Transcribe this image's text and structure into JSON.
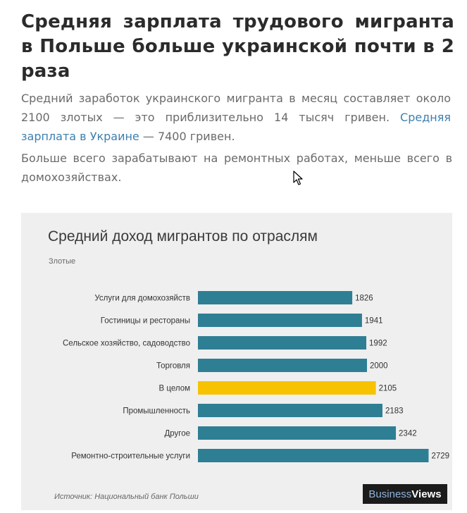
{
  "article": {
    "headline": "Средняя зарплата трудового мигранта в Польше больше украинской почти в 2 раза",
    "lead_text": "Средний заработок украинского мигранта в месяц составляет около 2100 злотых — это приблизительно 14 тысяч гривен. ",
    "lead_link": "Средняя зарплата в Украине",
    "lead_tail": " — 7400 гривен.",
    "paragraph2": "Больше всего зарабатывают на ремонтных работах, меньше всего в домохозяйствах."
  },
  "chart_data": {
    "type": "bar",
    "orientation": "horizontal",
    "title": "Средний доход мигрантов по отраслям",
    "unit_label": "Злотые",
    "categories": [
      "Услуги для домохозяйств",
      "Гостиницы и рестораны",
      "Сельское хозяйство, садоводство",
      "Торговля",
      "В целом",
      "Промышленность",
      "Другое",
      "Ремонтно-строительные  услуги"
    ],
    "values": [
      1826,
      1941,
      1992,
      2000,
      2105,
      2183,
      2342,
      2729
    ],
    "highlight_index": 4,
    "colors": {
      "bar": "#2e7f94",
      "highlight": "#f7c200"
    },
    "xlim": [
      0,
      2800
    ],
    "grid": false,
    "source": "Источник: Национальный банк Польши",
    "brand": {
      "part1": "Business",
      "part2": "Views"
    }
  }
}
